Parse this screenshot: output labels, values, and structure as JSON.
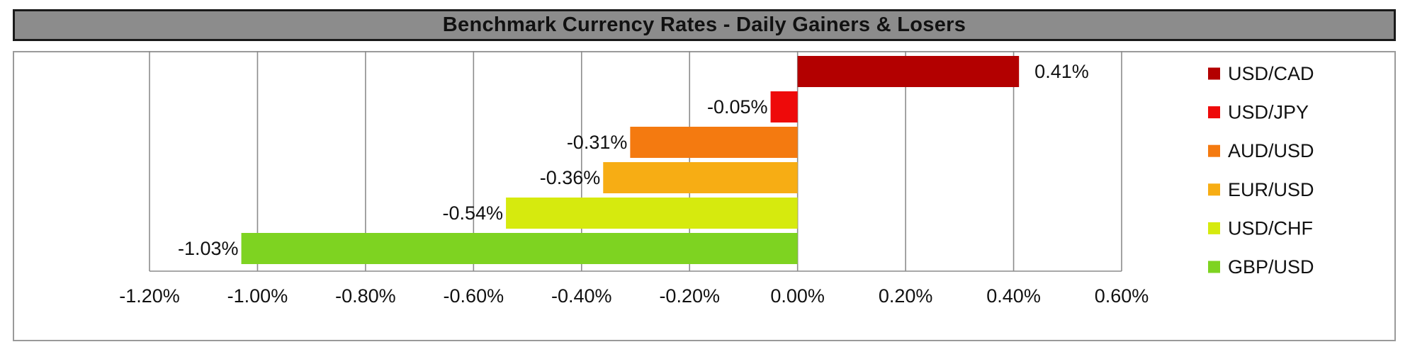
{
  "chart_data": {
    "type": "bar",
    "orientation": "horizontal",
    "title": "Benchmark Currency Rates - Daily Gainers & Losers",
    "categories": [
      "USD/CAD",
      "USD/JPY",
      "AUD/USD",
      "EUR/USD",
      "USD/CHF",
      "GBP/USD"
    ],
    "values": [
      0.41,
      -0.05,
      -0.31,
      -0.36,
      -0.54,
      -1.03
    ],
    "value_labels": [
      "0.41%",
      "-0.05%",
      "-0.31%",
      "-0.36%",
      "-0.54%",
      "-1.03%"
    ],
    "colors": [
      "#b30000",
      "#ee0a0a",
      "#f47a10",
      "#f7ad14",
      "#d6ea0e",
      "#7ed321"
    ],
    "xlim": [
      -1.2,
      0.6
    ],
    "x_ticks": [
      -1.2,
      -1.0,
      -0.8,
      -0.6,
      -0.4,
      -0.2,
      0.0,
      0.2,
      0.4,
      0.6
    ],
    "x_tick_labels": [
      "-1.20%",
      "-1.00%",
      "-0.80%",
      "-0.60%",
      "-0.40%",
      "-0.20%",
      "0.00%",
      "0.20%",
      "0.40%",
      "0.60%"
    ],
    "xlabel": "",
    "ylabel": "",
    "grid": "vertical",
    "legend_position": "right",
    "legend": [
      "USD/CAD",
      "USD/JPY",
      "AUD/USD",
      "EUR/USD",
      "USD/CHF",
      "GBP/USD"
    ]
  }
}
